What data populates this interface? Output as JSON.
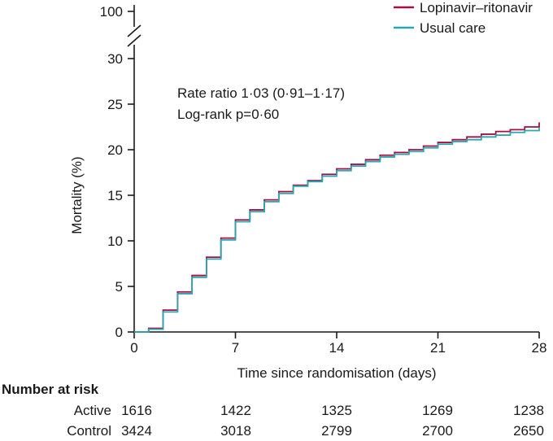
{
  "chart_data": {
    "type": "line",
    "subtype": "step",
    "title": "",
    "xlabel": "Time since randomisation (days)",
    "ylabel": "Mortality (%)",
    "xlim": [
      0,
      28
    ],
    "ylim": [
      0,
      30
    ],
    "y_axis_break_label": "100",
    "x_ticks": [
      0,
      7,
      14,
      21,
      28
    ],
    "y_ticks": [
      0,
      5,
      10,
      15,
      20,
      25,
      30
    ],
    "grid": "off",
    "legend_position": "top-right",
    "annotations": [
      "Rate ratio 1·03 (0·91–1·17)",
      "Log-rank p=0·60"
    ],
    "x": [
      0,
      1,
      2,
      3,
      4,
      5,
      6,
      7,
      8,
      9,
      10,
      11,
      12,
      13,
      14,
      15,
      16,
      17,
      18,
      19,
      20,
      21,
      22,
      23,
      24,
      25,
      26,
      27,
      28
    ],
    "series": [
      {
        "name": "Lopinavir–ritonavir",
        "color": "#a50f44",
        "values": [
          0,
          0.4,
          2.4,
          4.4,
          6.2,
          8.2,
          10.3,
          12.3,
          13.4,
          14.5,
          15.4,
          16.1,
          16.6,
          17.3,
          17.9,
          18.4,
          18.9,
          19.4,
          19.7,
          20.0,
          20.4,
          20.8,
          21.1,
          21.4,
          21.7,
          22.0,
          22.2,
          22.5,
          23.0
        ]
      },
      {
        "name": "Usual care",
        "color": "#29a7b1",
        "values": [
          0,
          0.3,
          2.2,
          4.2,
          6.0,
          8.0,
          10.1,
          12.1,
          13.2,
          14.3,
          15.2,
          16.0,
          16.5,
          17.1,
          17.7,
          18.2,
          18.7,
          19.2,
          19.5,
          19.8,
          20.2,
          20.6,
          20.9,
          21.1,
          21.4,
          21.6,
          21.9,
          22.1,
          22.4
        ]
      }
    ]
  },
  "risk_table": {
    "title": "Number at risk",
    "rows": [
      {
        "label": "Active",
        "values": [
          "1616",
          "1422",
          "1325",
          "1269",
          "1238"
        ]
      },
      {
        "label": "Control",
        "values": [
          "3424",
          "3018",
          "2799",
          "2700",
          "2650"
        ]
      }
    ]
  }
}
